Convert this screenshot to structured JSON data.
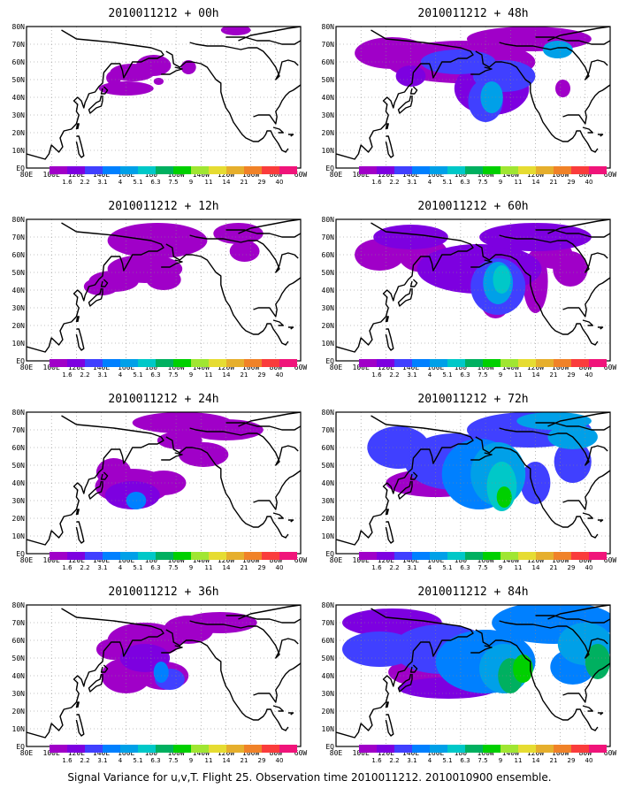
{
  "panels": [
    {
      "title": "2010011212 + 00h",
      "lead": "00h"
    },
    {
      "title": "2010011212 + 48h",
      "lead": "48h"
    },
    {
      "title": "2010011212 + 12h",
      "lead": "12h"
    },
    {
      "title": "2010011212 + 60h",
      "lead": "60h"
    },
    {
      "title": "2010011212 + 24h",
      "lead": "24h"
    },
    {
      "title": "2010011212 + 72h",
      "lead": "72h"
    },
    {
      "title": "2010011212 + 36h",
      "lead": "36h"
    },
    {
      "title": "2010011212 + 84h",
      "lead": "84h"
    }
  ],
  "lat_labels": [
    "EQ",
    "10N",
    "20N",
    "30N",
    "40N",
    "50N",
    "60N",
    "70N",
    "80N"
  ],
  "lon_labels": [
    "80E",
    "100E",
    "120E",
    "140E",
    "160E",
    "180",
    "160W",
    "140W",
    "120W",
    "100W",
    "80W",
    "60W"
  ],
  "colorbar": {
    "labels": [
      "1.6",
      "2.2",
      "3.1",
      "4",
      "5.1",
      "6.3",
      "7.5",
      "9",
      "11",
      "14",
      "21",
      "29",
      "40"
    ],
    "colors": [
      "#a000c8",
      "#7d00e0",
      "#4040ff",
      "#0080ff",
      "#00a0e8",
      "#00c8c8",
      "#00b060",
      "#00d000",
      "#a0e632",
      "#e6dc32",
      "#e6af2d",
      "#f08228",
      "#fa3c3c",
      "#f0147a"
    ]
  },
  "caption": "Signal Variance for u,v,T. Flight 25. Observation time 2010011212. 2010010900 ensemble."
}
